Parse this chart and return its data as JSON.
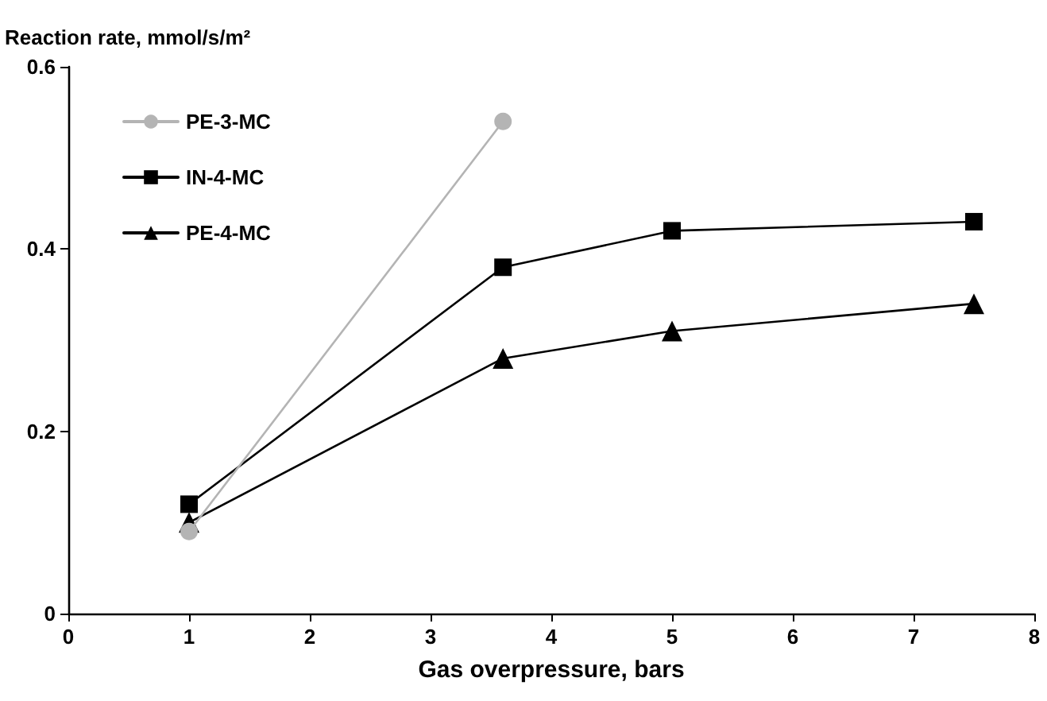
{
  "chart_data": {
    "type": "line",
    "xlabel": "Gas overpressure, bars",
    "ylabel": "Reaction rate, mmol/s/m²",
    "x": [
      1,
      3.6,
      5,
      7.5
    ],
    "series": [
      {
        "name": "PE-3-MC",
        "color": "#b4b4b4",
        "marker": "circle",
        "x": [
          1,
          3.6
        ],
        "values": [
          0.09,
          0.54
        ]
      },
      {
        "name": "IN-4-MC",
        "color": "#000000",
        "marker": "square",
        "values": [
          0.12,
          0.38,
          0.42,
          0.43
        ]
      },
      {
        "name": "PE-4-MC",
        "color": "#000000",
        "marker": "triangle",
        "values": [
          0.1,
          0.28,
          0.31,
          0.34
        ]
      }
    ],
    "xlim": [
      0,
      8
    ],
    "xticks": [
      0,
      1,
      2,
      3,
      4,
      5,
      6,
      7,
      8
    ],
    "ylim": [
      0,
      0.6
    ],
    "yticks": [
      0,
      0.2,
      0.4,
      0.6
    ],
    "grid": false,
    "legend": "top left",
    "line_style": "solid"
  }
}
